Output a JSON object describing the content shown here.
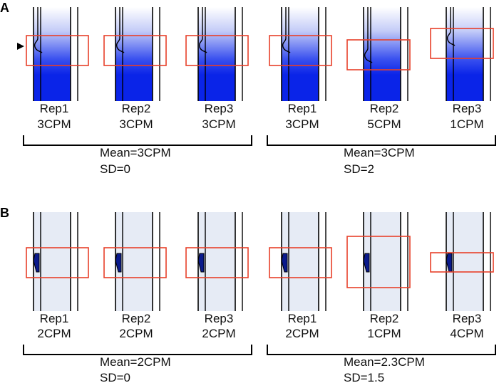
{
  "colors": {
    "gel_dark": "#0a24e8",
    "gel_mid": "#3b52ef",
    "gel_light": "#e6ebf5",
    "box_red": "#e8402a",
    "band_navy": "#0a1a8c",
    "lane_line": "#000000"
  },
  "panels": [
    {
      "letter": "A",
      "style": "gradient",
      "marker_icon": "triangle-right-icon",
      "groups": [
        {
          "lanes": [
            {
              "rep": "Rep1",
              "cpm": "3CPM"
            },
            {
              "rep": "Rep2",
              "cpm": "3CPM"
            },
            {
              "rep": "Rep3",
              "cpm": "3CPM"
            }
          ],
          "mean": "Mean=3CPM",
          "sd": "SD=0"
        },
        {
          "lanes": [
            {
              "rep": "Rep1",
              "cpm": "3CPM"
            },
            {
              "rep": "Rep2",
              "cpm": "5CPM"
            },
            {
              "rep": "Rep3",
              "cpm": "1CPM"
            }
          ],
          "mean": "Mean=3CPM",
          "sd": "SD=2"
        }
      ]
    },
    {
      "letter": "B",
      "style": "band",
      "groups": [
        {
          "lanes": [
            {
              "rep": "Rep1",
              "cpm": "2CPM"
            },
            {
              "rep": "Rep2",
              "cpm": "2CPM"
            },
            {
              "rep": "Rep3",
              "cpm": "2CPM"
            }
          ],
          "mean": "Mean=2CPM",
          "sd": "SD=0"
        },
        {
          "lanes": [
            {
              "rep": "Rep1",
              "cpm": "2CPM"
            },
            {
              "rep": "Rep2",
              "cpm": "1CPM"
            },
            {
              "rep": "Rep3",
              "cpm": "4CPM"
            }
          ],
          "mean": "Mean=2.3CPM",
          "sd": "SD=1.5"
        }
      ]
    }
  ]
}
